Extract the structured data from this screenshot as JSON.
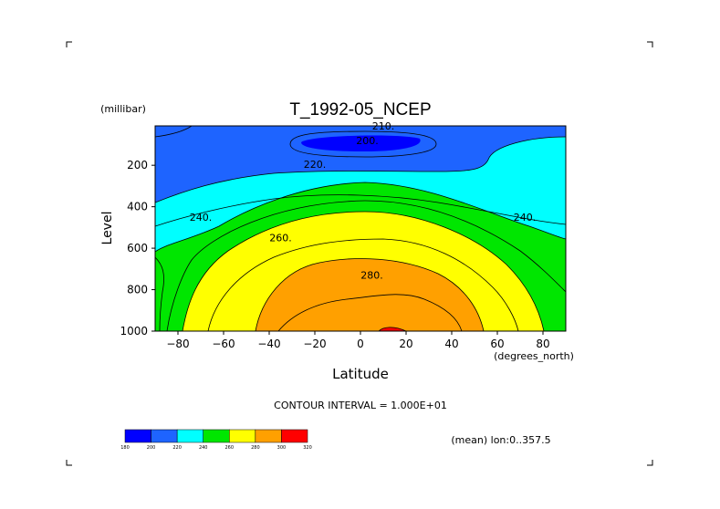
{
  "chart_data": {
    "type": "contour",
    "title": "T_1992-05_NCEP",
    "xlabel": "Latitude",
    "xunits": "(degrees_north)",
    "ylabel": "Level",
    "yunits": "(millibar)",
    "xlim": [
      -90,
      90
    ],
    "ylim": [
      1000,
      10
    ],
    "x_ticks": [
      -80,
      -60,
      -40,
      -20,
      0,
      20,
      40,
      60,
      80
    ],
    "y_ticks": [
      200,
      400,
      600,
      800,
      1000
    ],
    "contour_interval": 10,
    "contour_levels": [
      200,
      210,
      220,
      230,
      240,
      250,
      260,
      270,
      280,
      290,
      300
    ],
    "contour_labels": [
      {
        "value": "210",
        "x": 10,
        "y": 10
      },
      {
        "value": "200",
        "x": 3,
        "y": 80
      },
      {
        "value": "220",
        "x": -20,
        "y": 195
      },
      {
        "value": "240",
        "x": -70,
        "y": 450
      },
      {
        "value": "260",
        "x": -35,
        "y": 550
      },
      {
        "value": "280",
        "x": 5,
        "y": 730
      },
      {
        "value": "240",
        "x": 72,
        "y": 450
      }
    ],
    "colorbar": {
      "levels": [
        "180",
        "200",
        "220",
        "240",
        "260",
        "280",
        "300",
        "320"
      ],
      "colors": [
        "#0000ff",
        "#1e64ff",
        "#00ffff",
        "#00e600",
        "#ffff00",
        "#ffa000",
        "#ff0000"
      ]
    },
    "annotation": "CONTOUR INTERVAL = 1.000E+01",
    "mean_note": "(mean) lon:0..357.5"
  },
  "colors": {
    "c200": "#0000ff",
    "c210": "#1e64ff",
    "c220": "#00ffff",
    "c240": "#00e600",
    "c260": "#ffff00",
    "c280": "#ffa000",
    "c300": "#ff0000"
  }
}
